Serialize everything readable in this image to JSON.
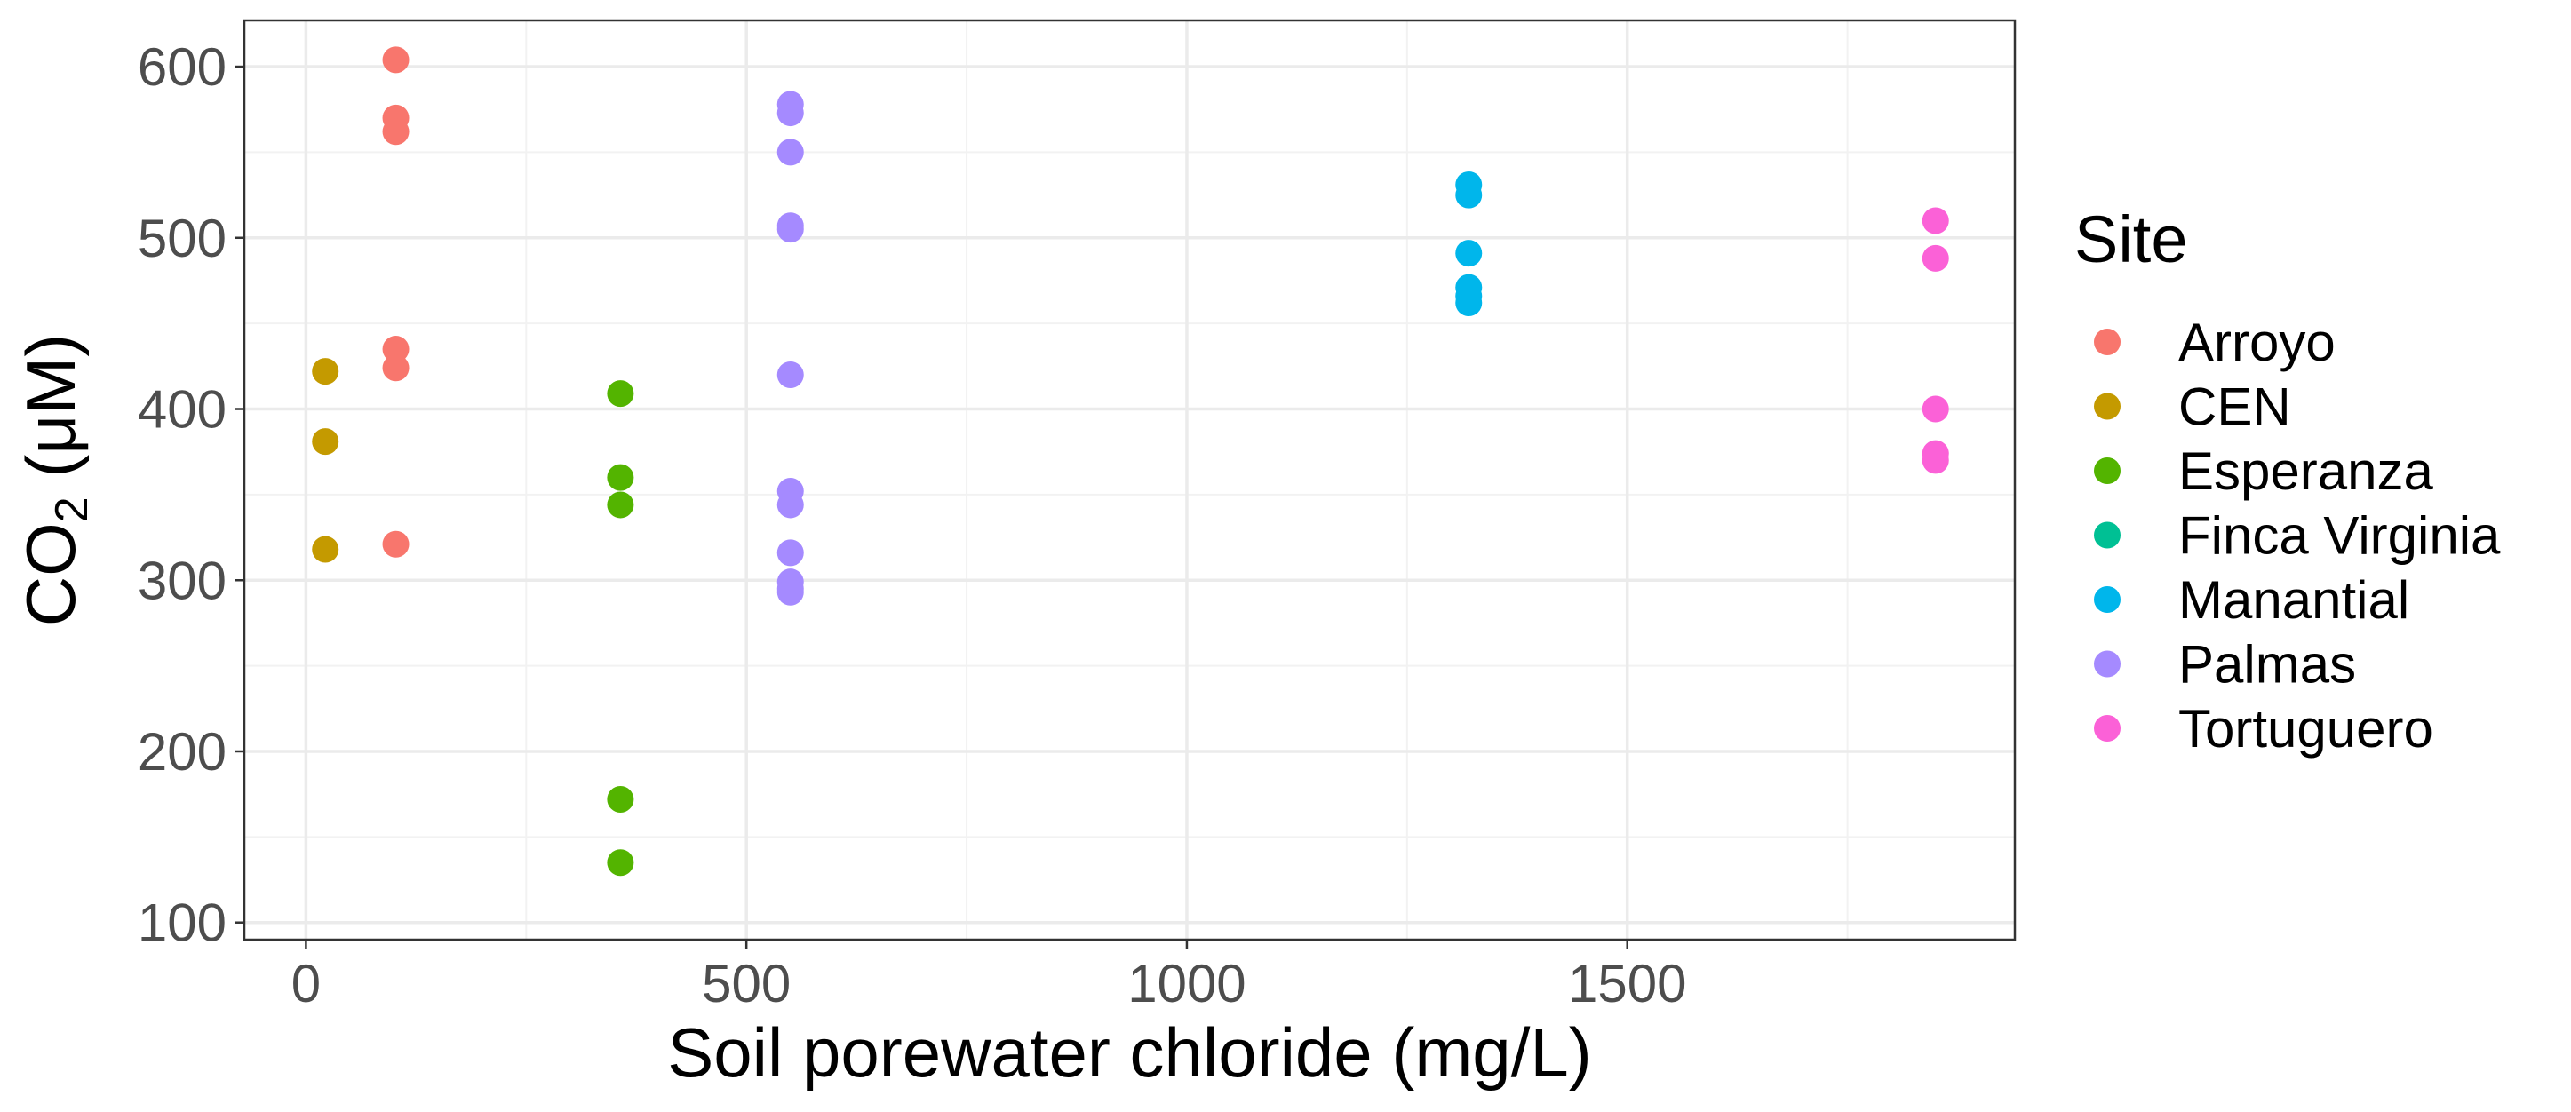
{
  "chart_data": {
    "type": "scatter",
    "xlabel": "Soil porewater chloride (mg/L)",
    "ylabel_main": "CO",
    "ylabel_sub": "2",
    "ylabel_unit": " (μM)",
    "xlim": [
      -70,
      1940
    ],
    "ylim": [
      90,
      627
    ],
    "x_ticks": [
      0,
      500,
      1000,
      1500
    ],
    "x_tick_labels": [
      "0",
      "500",
      "1000",
      "1500"
    ],
    "y_ticks": [
      100,
      200,
      300,
      400,
      500,
      600
    ],
    "y_tick_labels": [
      "100",
      "200",
      "300",
      "400",
      "500",
      "600"
    ],
    "grid": true,
    "legend_title": "Site",
    "legend_position": "right",
    "series": [
      {
        "name": "Arroyo",
        "color": "#F8766D",
        "x": [
          102,
          102,
          102,
          102,
          102,
          102
        ],
        "y": [
          604,
          570,
          562,
          435,
          424,
          321
        ]
      },
      {
        "name": "CEN",
        "color": "#C49A00",
        "x": [
          22,
          22,
          22
        ],
        "y": [
          422,
          381,
          318
        ]
      },
      {
        "name": "Esperanza",
        "color": "#53B400",
        "x": [
          357,
          357,
          357,
          357,
          357
        ],
        "y": [
          409,
          360,
          344,
          172,
          135
        ]
      },
      {
        "name": "Finca Virginia",
        "color": "#00C094",
        "x": [],
        "y": []
      },
      {
        "name": "Manantial",
        "color": "#00B6EB",
        "x": [
          1320,
          1320,
          1320,
          1320,
          1320,
          1320
        ],
        "y": [
          531,
          525,
          491,
          471,
          466,
          462
        ]
      },
      {
        "name": "Palmas",
        "color": "#A58AFF",
        "x": [
          550,
          550,
          550,
          550,
          550,
          550,
          550,
          550,
          550,
          550,
          550,
          550
        ],
        "y": [
          578,
          573,
          550,
          507,
          505,
          420,
          352,
          344,
          316,
          299,
          295,
          293
        ]
      },
      {
        "name": "Tortuguero",
        "color": "#FB61D7",
        "x": [
          1850,
          1850,
          1850,
          1850,
          1850
        ],
        "y": [
          510,
          488,
          400,
          374,
          370
        ]
      }
    ]
  }
}
